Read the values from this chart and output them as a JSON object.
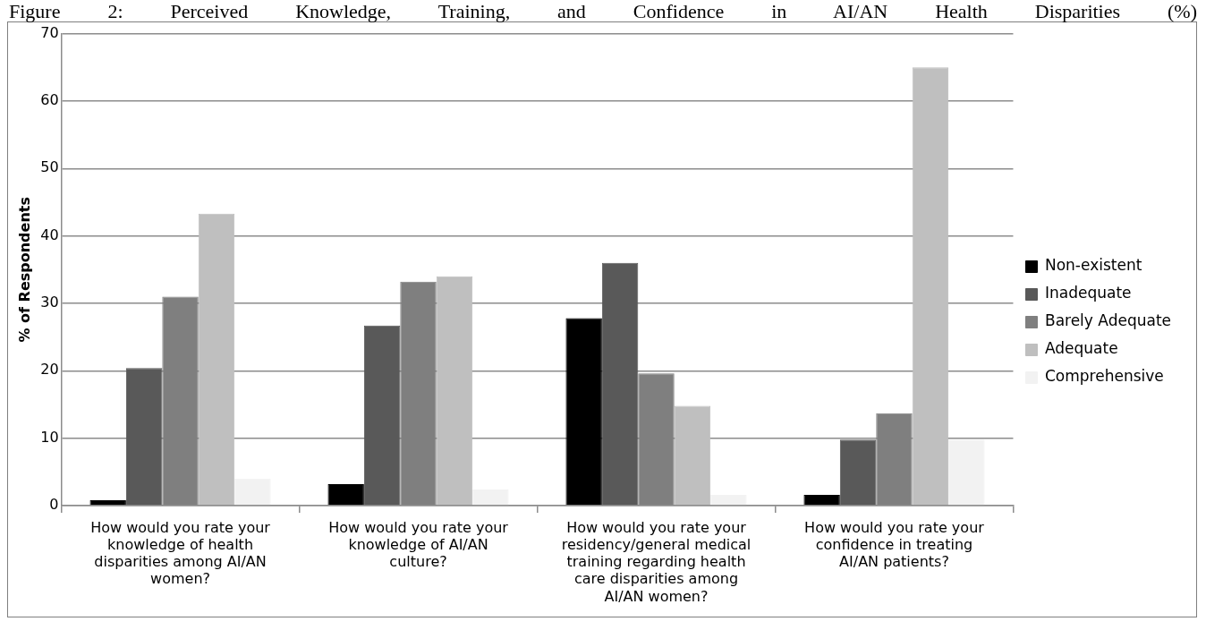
{
  "chart_data": {
    "type": "bar",
    "title": "Figure 2: Perceived Knowledge, Training, and Confidence in AI/AN Health Disparities (%)",
    "ylabel": "% of Respondents",
    "categories": [
      "How would you rate your knowledge of health disparities among AI/AN women?",
      "How would you rate your knowledge of AI/AN culture?",
      "How would you rate your residency/general medical training regarding health care disparities among AI/AN women?",
      "How would you rate your confidence in treating AI/AN patients?"
    ],
    "series": [
      {
        "name": "Non-existent",
        "color": "#000000",
        "values": [
          0.8,
          3.2,
          27.8,
          1.6
        ]
      },
      {
        "name": "Inadequate",
        "color": "#595959",
        "values": [
          20.4,
          26.7,
          36,
          9.8
        ]
      },
      {
        "name": "Barely Adequate",
        "color": "#7f7f7f",
        "values": [
          31,
          33.2,
          19.6,
          13.7
        ]
      },
      {
        "name": "Adequate",
        "color": "#bfbfbf",
        "values": [
          43.3,
          34,
          14.8,
          65
        ]
      },
      {
        "name": "Comprehensive",
        "color": "#f2f2f2",
        "values": [
          4,
          2.4,
          1.6,
          9.8
        ]
      }
    ],
    "ylim": [
      0,
      70
    ],
    "yticks": [
      0,
      10,
      20,
      30,
      40,
      50,
      60,
      70
    ],
    "grid": "y",
    "legend": "right"
  }
}
